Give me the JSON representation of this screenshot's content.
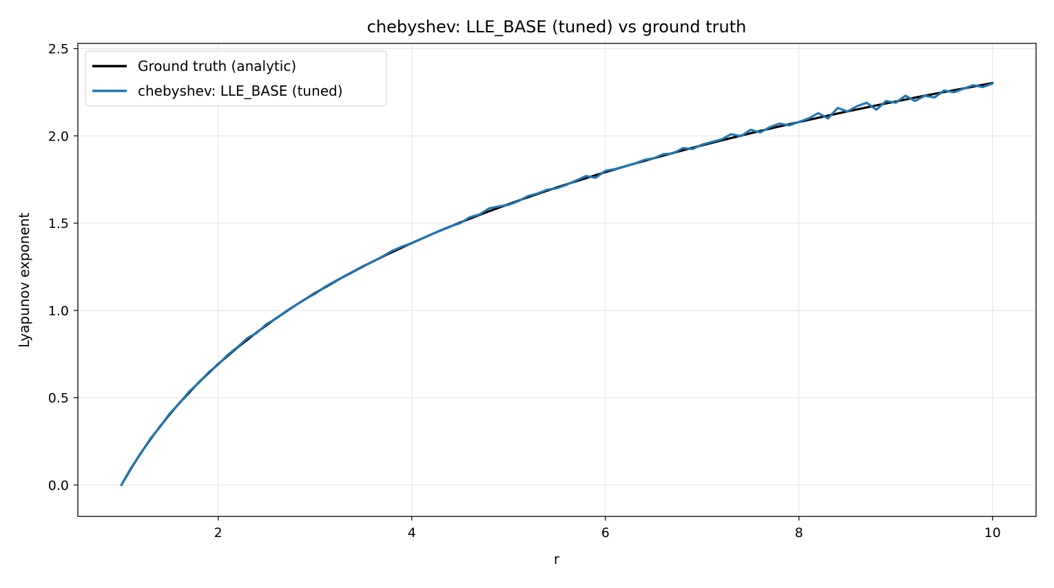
{
  "chart_data": {
    "type": "line",
    "title": "chebyshev: LLE_BASE (tuned) vs ground truth",
    "xlabel": "r",
    "ylabel": "Lyapunov exponent",
    "xlim": [
      0.55,
      10.45
    ],
    "ylim": [
      -0.18,
      2.53
    ],
    "x_ticks": [
      2,
      4,
      6,
      8,
      10
    ],
    "x_tick_labels": [
      "2",
      "4",
      "6",
      "8",
      "10"
    ],
    "y_ticks": [
      0.0,
      0.5,
      1.0,
      1.5,
      2.0,
      2.5
    ],
    "y_tick_labels": [
      "0.0",
      "0.5",
      "1.0",
      "1.5",
      "2.0",
      "2.5"
    ],
    "grid": true,
    "legend_position": "top-left",
    "series": [
      {
        "name": "Ground truth (analytic)",
        "color": "#000000",
        "x": [
          1.0,
          1.1,
          1.2,
          1.3,
          1.4,
          1.5,
          1.6,
          1.8,
          2.0,
          2.2,
          2.4,
          2.6,
          2.8,
          3.0,
          3.25,
          3.5,
          3.75,
          4.0,
          4.25,
          4.5,
          4.75,
          5.0,
          5.25,
          5.5,
          5.75,
          6.0,
          6.25,
          6.5,
          6.75,
          7.0,
          7.25,
          7.5,
          7.75,
          8.0,
          8.25,
          8.5,
          8.75,
          9.0,
          9.25,
          9.5,
          9.75,
          10.0
        ],
        "y": [
          0.0,
          0.095,
          0.182,
          0.262,
          0.336,
          0.405,
          0.47,
          0.588,
          0.693,
          0.788,
          0.875,
          0.956,
          1.03,
          1.099,
          1.179,
          1.253,
          1.322,
          1.386,
          1.447,
          1.504,
          1.558,
          1.609,
          1.658,
          1.705,
          1.749,
          1.792,
          1.833,
          1.872,
          1.91,
          1.946,
          1.981,
          2.015,
          2.048,
          2.079,
          2.11,
          2.14,
          2.169,
          2.197,
          2.225,
          2.251,
          2.277,
          2.303
        ]
      },
      {
        "name": "chebyshev: LLE_BASE (tuned)",
        "color": "#1f77b4",
        "x": [
          1.0,
          1.05,
          1.1,
          1.2,
          1.3,
          1.4,
          1.5,
          1.6,
          1.7,
          1.8,
          1.9,
          2.0,
          2.1,
          2.2,
          2.3,
          2.4,
          2.5,
          2.6,
          2.7,
          2.8,
          2.9,
          3.0,
          3.1,
          3.2,
          3.3,
          3.4,
          3.5,
          3.6,
          3.7,
          3.8,
          3.9,
          4.0,
          4.1,
          4.2,
          4.3,
          4.4,
          4.5,
          4.6,
          4.7,
          4.8,
          4.9,
          5.0,
          5.1,
          5.2,
          5.3,
          5.4,
          5.5,
          5.6,
          5.7,
          5.8,
          5.9,
          6.0,
          6.1,
          6.2,
          6.3,
          6.4,
          6.5,
          6.6,
          6.7,
          6.8,
          6.9,
          7.0,
          7.1,
          7.2,
          7.3,
          7.4,
          7.5,
          7.6,
          7.7,
          7.8,
          7.9,
          8.0,
          8.1,
          8.2,
          8.3,
          8.4,
          8.5,
          8.6,
          8.7,
          8.8,
          8.9,
          9.0,
          9.1,
          9.2,
          9.3,
          9.4,
          9.5,
          9.6,
          9.7,
          9.8,
          9.9,
          10.0
        ],
        "y": [
          0.0,
          0.05,
          0.098,
          0.18,
          0.266,
          0.333,
          0.41,
          0.468,
          0.535,
          0.585,
          0.645,
          0.69,
          0.746,
          0.79,
          0.84,
          0.872,
          0.922,
          0.954,
          0.995,
          1.03,
          1.065,
          1.095,
          1.134,
          1.165,
          1.195,
          1.225,
          1.255,
          1.28,
          1.31,
          1.342,
          1.366,
          1.385,
          1.41,
          1.435,
          1.46,
          1.482,
          1.5,
          1.534,
          1.55,
          1.585,
          1.596,
          1.605,
          1.626,
          1.655,
          1.67,
          1.692,
          1.7,
          1.72,
          1.745,
          1.77,
          1.76,
          1.8,
          1.81,
          1.825,
          1.84,
          1.862,
          1.872,
          1.895,
          1.9,
          1.93,
          1.925,
          1.95,
          1.965,
          1.98,
          2.01,
          1.998,
          2.035,
          2.02,
          2.05,
          2.07,
          2.06,
          2.08,
          2.1,
          2.13,
          2.1,
          2.16,
          2.14,
          2.17,
          2.19,
          2.15,
          2.2,
          2.19,
          2.23,
          2.2,
          2.23,
          2.22,
          2.26,
          2.25,
          2.27,
          2.29,
          2.28,
          2.3
        ]
      }
    ]
  }
}
